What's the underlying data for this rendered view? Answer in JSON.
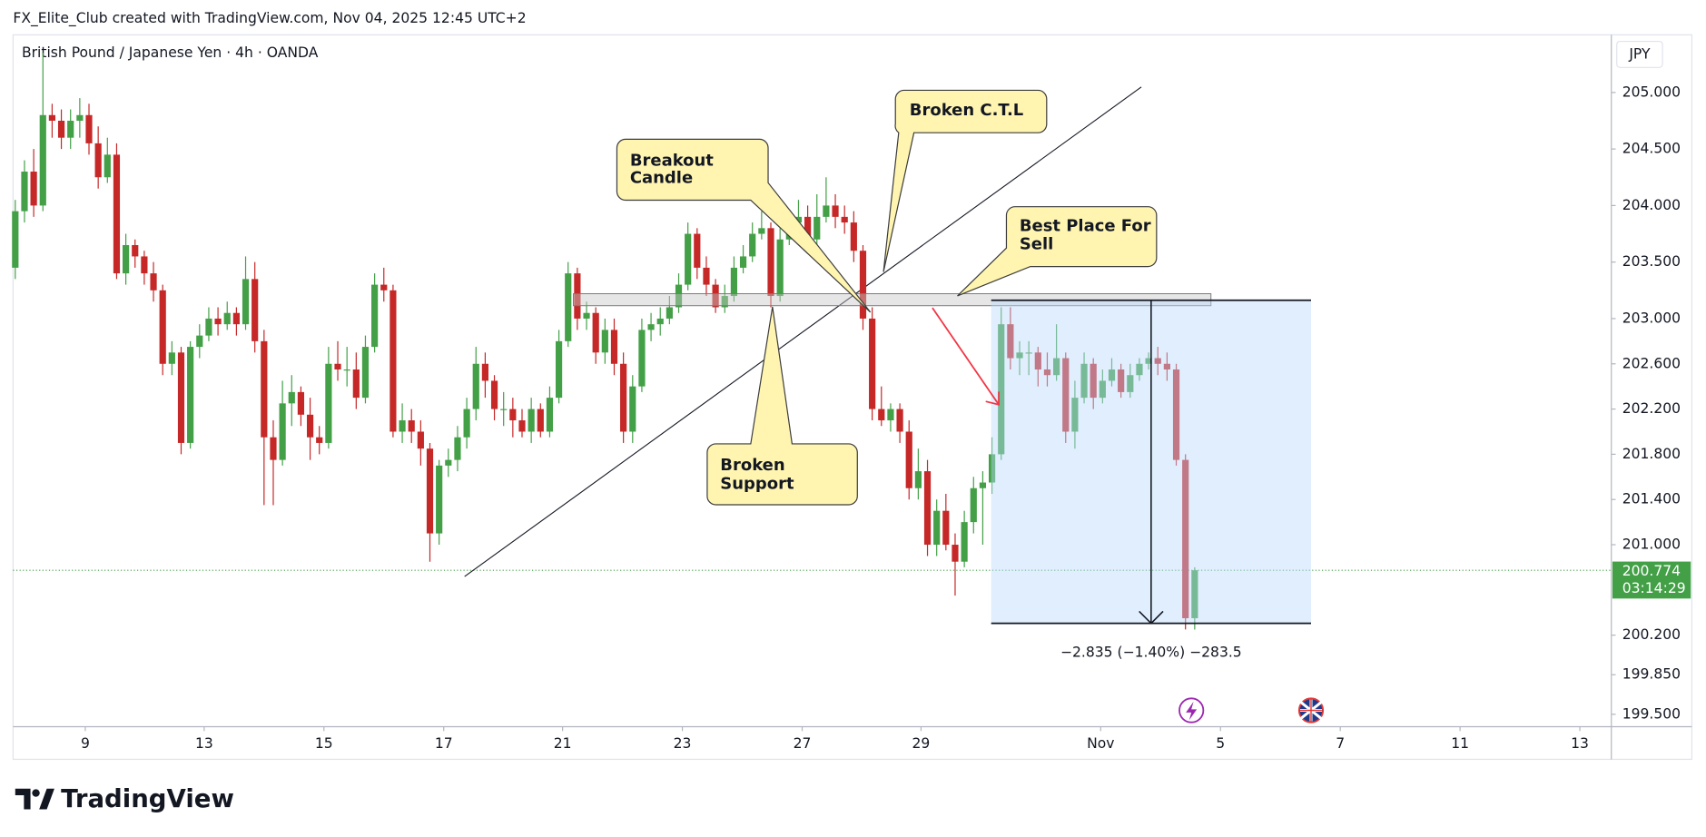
{
  "header": "FX_Elite_Club created with TradingView.com, Nov 04, 2025 12:45 UTC+2",
  "brand": "TradingView",
  "chart_data": {
    "type": "candlestick",
    "title": "British Pound / Japanese Yen · 4h · OANDA",
    "currency": "JPY",
    "last_price": 200.774,
    "countdown": "03:14:29",
    "up_color": "#43a047",
    "down_color": "#c62828",
    "measure_label": "−2.835 (−1.40%) −283.5",
    "annotations": [
      {
        "text": [
          "Breakout",
          "Candle"
        ]
      },
      {
        "text": [
          "Broken C.T.L"
        ]
      },
      {
        "text": [
          "Best Place For",
          "Sell"
        ]
      },
      {
        "text": [
          "Broken",
          "Support"
        ]
      }
    ],
    "ylim": [
      199.4,
      205.51
    ],
    "yticks": [
      {
        "value": 205,
        "label": "205.000"
      },
      {
        "value": 204.5,
        "label": "204.500"
      },
      {
        "value": 204,
        "label": "204.000"
      },
      {
        "value": 203.5,
        "label": "203.500"
      },
      {
        "value": 203,
        "label": "203.000"
      },
      {
        "value": 202.6,
        "label": "202.600"
      },
      {
        "value": 202.2,
        "label": "202.200"
      },
      {
        "value": 201.8,
        "label": "201.800"
      },
      {
        "value": 201.4,
        "label": "201.400"
      },
      {
        "value": 201,
        "label": "201.000"
      },
      {
        "value": 200.2,
        "label": "200.200"
      },
      {
        "value": 199.85,
        "label": "199.850"
      },
      {
        "value": 199.5,
        "label": "199.500"
      }
    ],
    "xlim": [
      -0.24,
      173.1
    ],
    "xticks": [
      {
        "value": 7.6,
        "label": "9"
      },
      {
        "value": 20.5,
        "label": "13"
      },
      {
        "value": 33.5,
        "label": "15"
      },
      {
        "value": 46.5,
        "label": "17"
      },
      {
        "value": 59.4,
        "label": "21"
      },
      {
        "value": 72.4,
        "label": "23"
      },
      {
        "value": 85.4,
        "label": "27"
      },
      {
        "value": 98.3,
        "label": "29"
      },
      {
        "value": 117.8,
        "label": "Nov"
      },
      {
        "value": 130.8,
        "label": "5"
      },
      {
        "value": 143.8,
        "label": "7"
      },
      {
        "value": 156.8,
        "label": "11"
      },
      {
        "value": 169.8,
        "label": "13"
      }
    ],
    "candles": [
      [
        203.45,
        204.05,
        203.35,
        203.95
      ],
      [
        203.95,
        204.4,
        203.85,
        204.3
      ],
      [
        204.3,
        204.5,
        203.9,
        204.0
      ],
      [
        204.0,
        205.35,
        203.95,
        204.8
      ],
      [
        204.8,
        204.9,
        204.6,
        204.75
      ],
      [
        204.75,
        204.85,
        204.5,
        204.6
      ],
      [
        204.6,
        204.85,
        204.5,
        204.75
      ],
      [
        204.75,
        204.95,
        204.6,
        204.8
      ],
      [
        204.8,
        204.9,
        204.45,
        204.55
      ],
      [
        204.55,
        204.7,
        204.15,
        204.25
      ],
      [
        204.25,
        204.6,
        204.2,
        204.45
      ],
      [
        204.45,
        204.55,
        203.35,
        203.4
      ],
      [
        203.4,
        203.75,
        203.3,
        203.65
      ],
      [
        203.65,
        203.7,
        203.45,
        203.55
      ],
      [
        203.55,
        203.6,
        203.3,
        203.4
      ],
      [
        203.4,
        203.5,
        203.15,
        203.25
      ],
      [
        203.25,
        203.3,
        202.5,
        202.6
      ],
      [
        202.6,
        202.8,
        202.5,
        202.7
      ],
      [
        202.7,
        202.75,
        201.8,
        201.9
      ],
      [
        201.9,
        202.8,
        201.85,
        202.75
      ],
      [
        202.75,
        202.95,
        202.65,
        202.85
      ],
      [
        202.85,
        203.1,
        202.8,
        203.0
      ],
      [
        203.0,
        203.1,
        202.85,
        202.95
      ],
      [
        202.95,
        203.15,
        202.9,
        203.05
      ],
      [
        203.05,
        203.1,
        202.85,
        202.95
      ],
      [
        202.95,
        203.55,
        202.9,
        203.35
      ],
      [
        203.35,
        203.5,
        202.7,
        202.8
      ],
      [
        202.8,
        202.9,
        201.35,
        201.95
      ],
      [
        201.95,
        202.1,
        201.35,
        201.75
      ],
      [
        201.75,
        202.45,
        201.7,
        202.25
      ],
      [
        202.25,
        202.5,
        202.05,
        202.35
      ],
      [
        202.35,
        202.4,
        202.05,
        202.15
      ],
      [
        202.15,
        202.3,
        201.75,
        201.95
      ],
      [
        201.95,
        202.05,
        201.8,
        201.9
      ],
      [
        201.9,
        202.75,
        201.85,
        202.6
      ],
      [
        202.6,
        202.8,
        202.45,
        202.55
      ],
      [
        202.55,
        202.75,
        202.4,
        202.55
      ],
      [
        202.55,
        202.7,
        202.2,
        202.3
      ],
      [
        202.3,
        202.85,
        202.25,
        202.75
      ],
      [
        202.75,
        203.4,
        202.7,
        203.3
      ],
      [
        203.3,
        203.45,
        203.15,
        203.25
      ],
      [
        203.25,
        203.3,
        201.95,
        202.0
      ],
      [
        202.0,
        202.25,
        201.9,
        202.1
      ],
      [
        202.1,
        202.2,
        201.9,
        202.0
      ],
      [
        202.0,
        202.1,
        201.7,
        201.85
      ],
      [
        201.85,
        201.9,
        200.85,
        201.1
      ],
      [
        201.1,
        201.75,
        201.0,
        201.7
      ],
      [
        201.7,
        201.85,
        201.6,
        201.75
      ],
      [
        201.75,
        202.05,
        201.65,
        201.95
      ],
      [
        201.95,
        202.3,
        201.85,
        202.2
      ],
      [
        202.2,
        202.75,
        202.1,
        202.6
      ],
      [
        202.6,
        202.7,
        202.3,
        202.45
      ],
      [
        202.45,
        202.5,
        202.1,
        202.2
      ],
      [
        202.2,
        202.35,
        202.05,
        202.2
      ],
      [
        202.2,
        202.3,
        201.95,
        202.1
      ],
      [
        202.1,
        202.2,
        201.95,
        202.0
      ],
      [
        202.0,
        202.3,
        201.9,
        202.2
      ],
      [
        202.2,
        202.25,
        201.95,
        202.0
      ],
      [
        202.0,
        202.4,
        201.95,
        202.3
      ],
      [
        202.3,
        202.9,
        202.25,
        202.8
      ],
      [
        202.8,
        203.5,
        202.75,
        203.4
      ],
      [
        203.4,
        203.45,
        202.9,
        203.0
      ],
      [
        203.0,
        203.15,
        202.9,
        203.05
      ],
      [
        203.05,
        203.1,
        202.6,
        202.7
      ],
      [
        202.7,
        203.0,
        202.6,
        202.9
      ],
      [
        202.9,
        203.0,
        202.5,
        202.6
      ],
      [
        202.6,
        202.7,
        201.9,
        202.0
      ],
      [
        202.0,
        202.5,
        201.9,
        202.4
      ],
      [
        202.4,
        203.0,
        202.35,
        202.9
      ],
      [
        202.9,
        203.05,
        202.8,
        202.95
      ],
      [
        202.95,
        203.1,
        202.85,
        203.0
      ],
      [
        203.0,
        203.2,
        202.95,
        203.1
      ],
      [
        203.1,
        203.4,
        203.05,
        203.3
      ],
      [
        203.3,
        203.85,
        203.25,
        203.75
      ],
      [
        203.75,
        203.8,
        203.35,
        203.45
      ],
      [
        203.45,
        203.55,
        203.2,
        203.3
      ],
      [
        203.3,
        203.35,
        203.05,
        203.1
      ],
      [
        203.1,
        203.3,
        203.05,
        203.2
      ],
      [
        203.2,
        203.55,
        203.15,
        203.45
      ],
      [
        203.45,
        203.65,
        203.4,
        203.55
      ],
      [
        203.55,
        203.85,
        203.5,
        203.75
      ],
      [
        203.75,
        203.95,
        203.7,
        203.8
      ],
      [
        203.8,
        203.85,
        203.1,
        203.2
      ],
      [
        203.2,
        203.8,
        203.15,
        203.7
      ],
      [
        203.7,
        203.95,
        203.65,
        203.85
      ],
      [
        203.85,
        204.05,
        203.75,
        203.9
      ],
      [
        203.9,
        204.0,
        203.6,
        203.7
      ],
      [
        203.7,
        204.1,
        203.65,
        203.9
      ],
      [
        203.9,
        204.25,
        203.85,
        204.0
      ],
      [
        204.0,
        204.1,
        203.8,
        203.9
      ],
      [
        203.9,
        204.0,
        203.75,
        203.85
      ],
      [
        203.85,
        203.95,
        203.5,
        203.6
      ],
      [
        203.6,
        203.65,
        202.9,
        203.0
      ],
      [
        203.0,
        203.1,
        202.1,
        202.2
      ],
      [
        202.2,
        202.4,
        202.05,
        202.1
      ],
      [
        202.1,
        202.25,
        202.0,
        202.2
      ],
      [
        202.2,
        202.25,
        201.9,
        202.0
      ],
      [
        202.0,
        202.1,
        201.4,
        201.5
      ],
      [
        201.5,
        201.85,
        201.4,
        201.65
      ],
      [
        201.65,
        201.75,
        200.9,
        201.0
      ],
      [
        201.0,
        201.4,
        200.9,
        201.3
      ],
      [
        201.3,
        201.45,
        200.95,
        201.0
      ],
      [
        201.0,
        201.1,
        200.55,
        200.85
      ],
      [
        200.85,
        201.3,
        200.8,
        201.2
      ],
      [
        201.2,
        201.6,
        201.1,
        201.5
      ],
      [
        201.5,
        201.65,
        201.0,
        201.55
      ],
      [
        201.55,
        201.95,
        201.45,
        201.8
      ],
      [
        201.8,
        203.1,
        201.75,
        202.95
      ],
      [
        202.95,
        203.1,
        202.55,
        202.65
      ],
      [
        202.65,
        202.8,
        202.5,
        202.7
      ],
      [
        202.7,
        202.8,
        202.5,
        202.7
      ],
      [
        202.7,
        202.75,
        202.4,
        202.55
      ],
      [
        202.55,
        202.7,
        202.4,
        202.5
      ],
      [
        202.5,
        202.95,
        202.45,
        202.65
      ],
      [
        202.65,
        202.7,
        201.9,
        202.0
      ],
      [
        202.0,
        202.45,
        201.85,
        202.3
      ],
      [
        202.3,
        202.7,
        202.25,
        202.6
      ],
      [
        202.6,
        202.65,
        202.2,
        202.3
      ],
      [
        202.3,
        202.55,
        202.25,
        202.45
      ],
      [
        202.45,
        202.65,
        202.4,
        202.55
      ],
      [
        202.55,
        202.6,
        202.3,
        202.35
      ],
      [
        202.35,
        202.6,
        202.3,
        202.5
      ],
      [
        202.5,
        202.65,
        202.45,
        202.6
      ],
      [
        202.6,
        202.7,
        202.55,
        202.65
      ],
      [
        202.65,
        202.75,
        202.5,
        202.6
      ],
      [
        202.6,
        202.7,
        202.45,
        202.55
      ],
      [
        202.55,
        202.6,
        201.7,
        201.75
      ],
      [
        201.75,
        201.8,
        200.25,
        200.35
      ],
      [
        200.35,
        200.8,
        200.25,
        200.774
      ]
    ]
  }
}
